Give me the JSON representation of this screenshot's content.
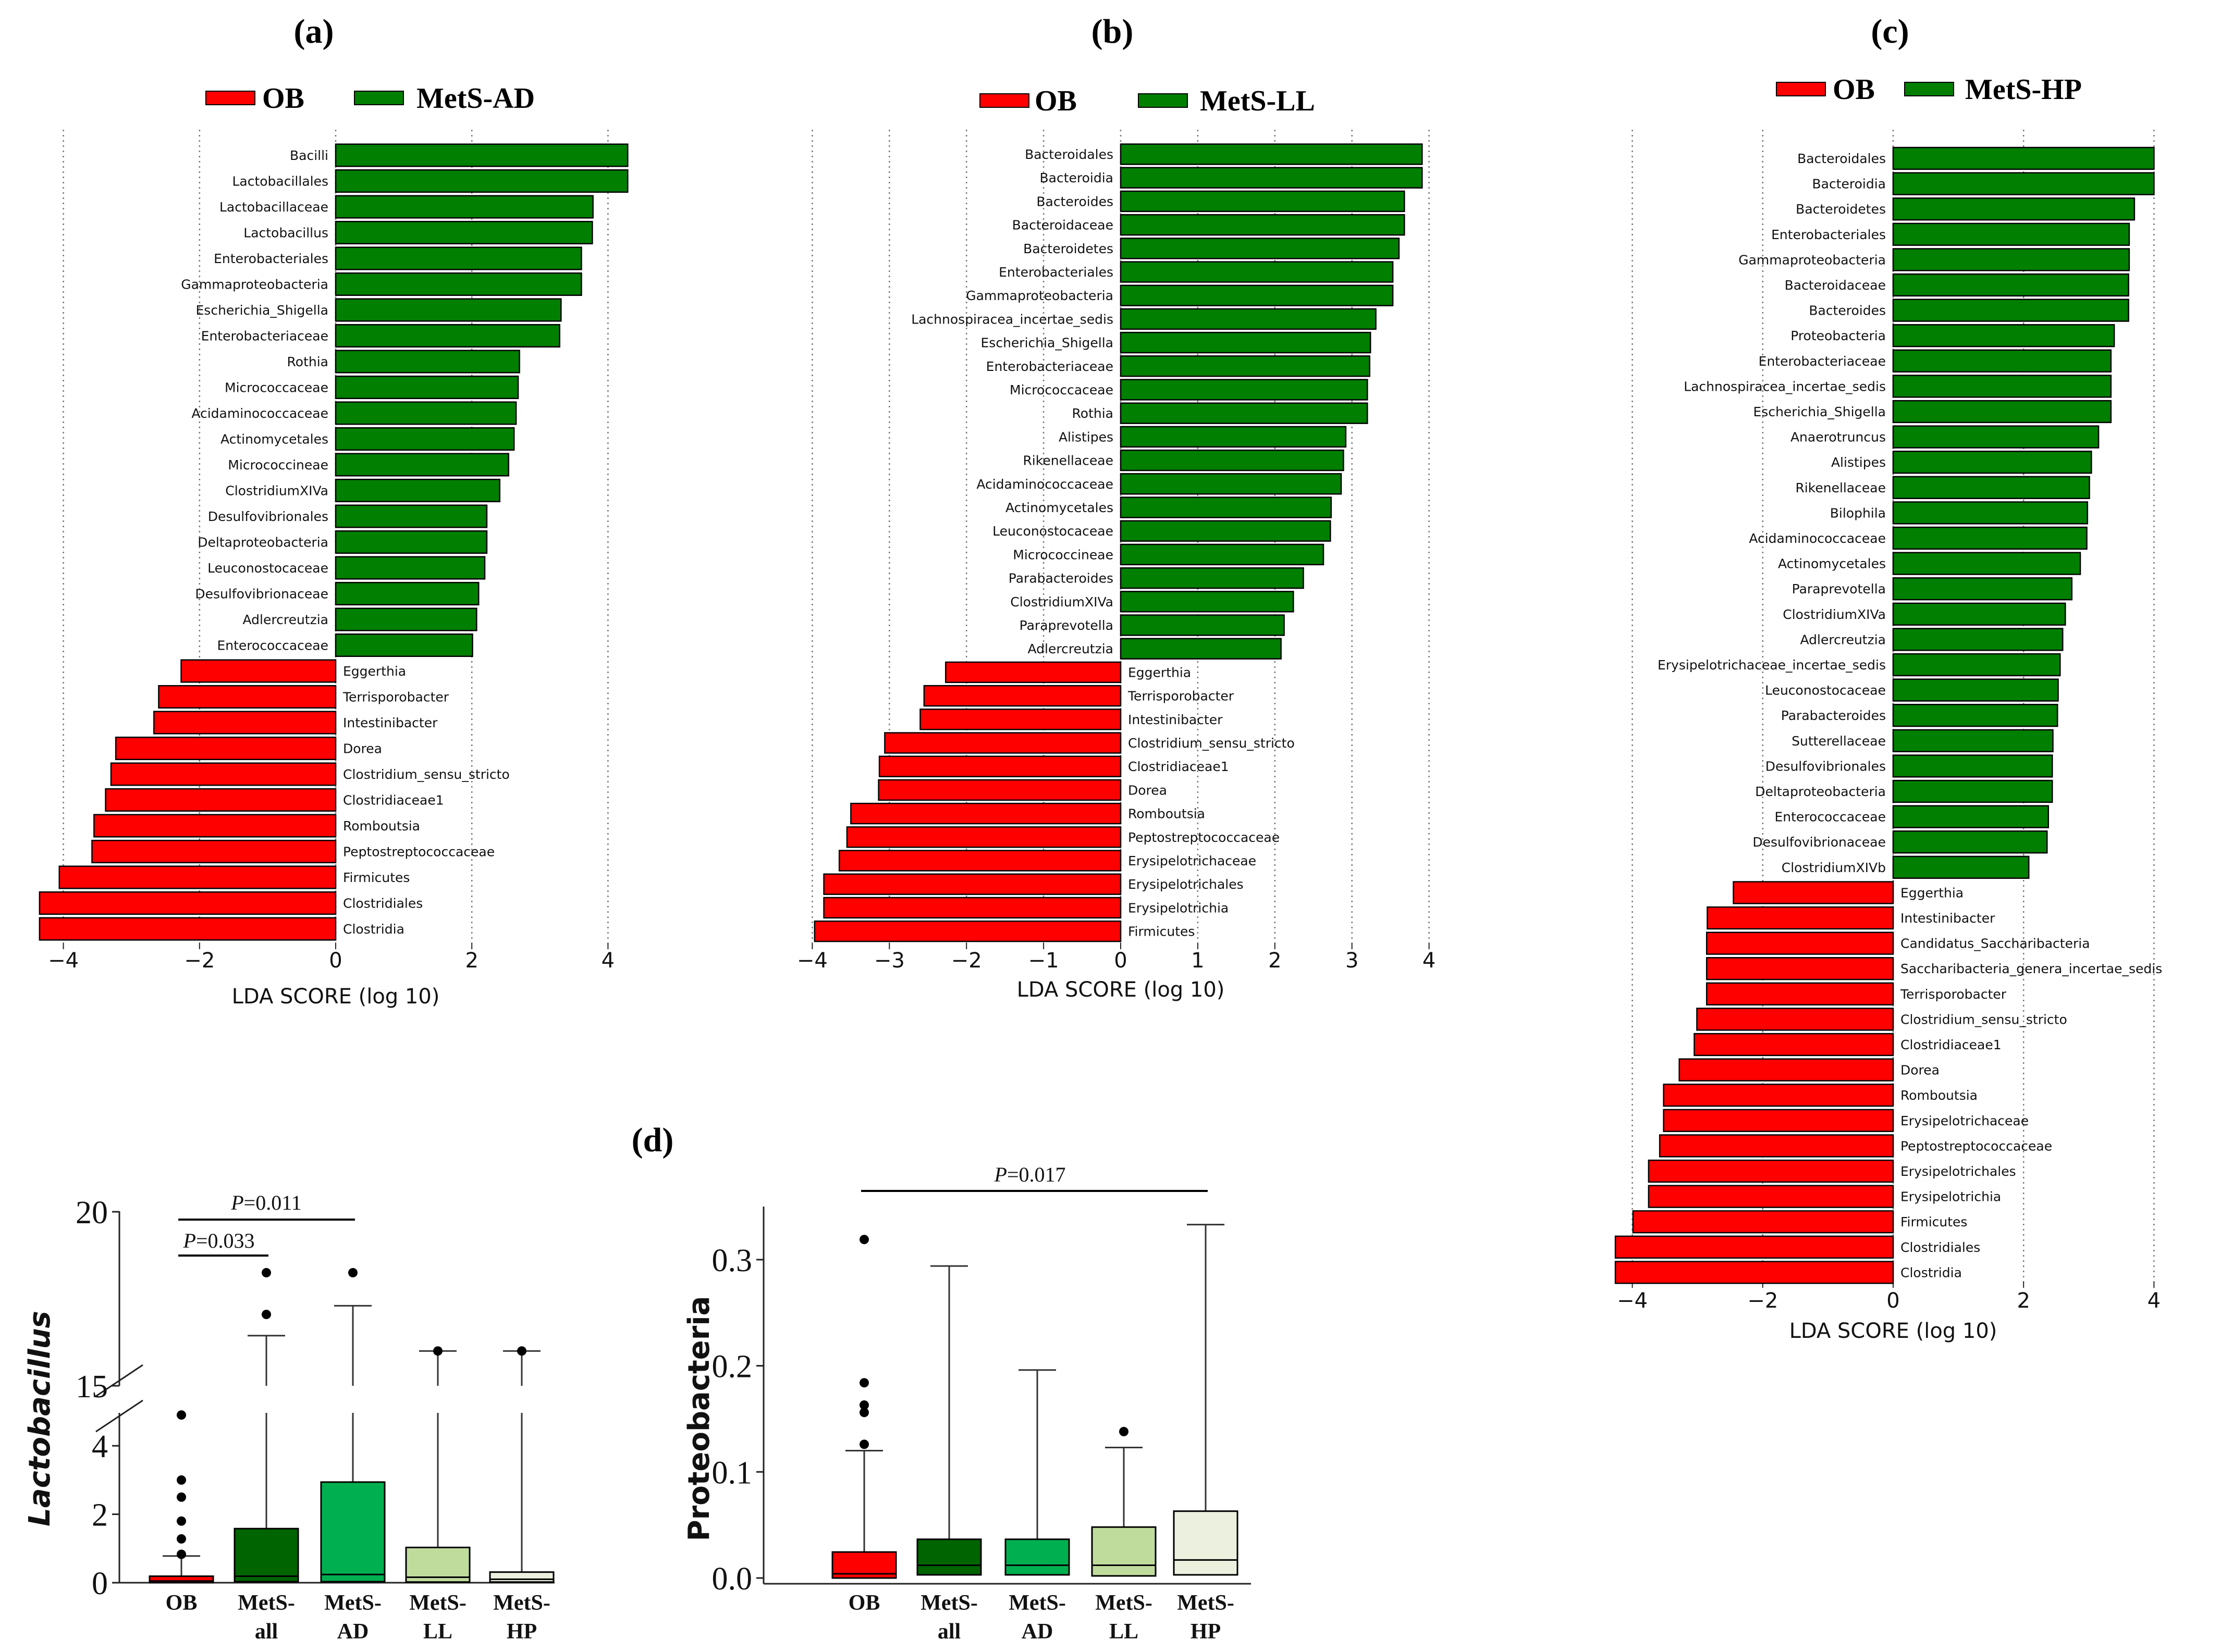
{
  "chart_data": [
    {
      "type": "bar",
      "orientation": "horizontal",
      "title": "(a)",
      "legend": [
        {
          "label": "OB",
          "color": "#ff0000"
        },
        {
          "label": "MetS-AD",
          "color": "#007f00"
        }
      ],
      "legend_placement": "top",
      "xlabel": "LDA SCORE (log 10)",
      "xticks": [
        -4,
        -2,
        0,
        2,
        4
      ],
      "xtick_labels": [
        "−4",
        "−2",
        "0",
        "2",
        "4"
      ],
      "xlim": [
        -4.5,
        4.5
      ],
      "grid": "vertical dotted",
      "categories": [
        "Bacilli",
        "Lactobacillales",
        "Lactobacillaceae",
        "Lactobacillus",
        "Enterobacteriales",
        "Gammaproteobacteria",
        "Escherichia_Shigella",
        "Enterobacteriaceae",
        "Rothia",
        "Micrococcaceae",
        "Acidaminococcaceae",
        "Actinomycetales",
        "Micrococcineae",
        "ClostridiumXIVa",
        "Desulfovibrionales",
        "Deltaproteobacteria",
        "Leuconostocaceae",
        "Desulfovibrionaceae",
        "Adlercreutzia",
        "Enterococcaceae",
        "Eggerthia",
        "Terrisporobacter",
        "Intestinibacter",
        "Dorea",
        "Clostridium_sensu_stricto",
        "Clostridiaceae1",
        "Romboutsia",
        "Peptostreptococcaceae",
        "Firmicutes",
        "Clostridiales",
        "Clostridia"
      ],
      "values": [
        4.29,
        4.29,
        3.78,
        3.77,
        3.61,
        3.61,
        3.31,
        3.29,
        2.7,
        2.68,
        2.65,
        2.62,
        2.54,
        2.41,
        2.22,
        2.22,
        2.19,
        2.1,
        2.07,
        2.01,
        -2.27,
        -2.6,
        -2.67,
        -3.23,
        -3.3,
        -3.38,
        -3.55,
        -3.58,
        -4.06,
        -4.35,
        -4.35
      ]
    },
    {
      "type": "bar",
      "orientation": "horizontal",
      "title": "(b)",
      "legend": [
        {
          "label": "OB",
          "color": "#ff0000"
        },
        {
          "label": "MetS-LL",
          "color": "#007f00"
        }
      ],
      "legend_placement": "top",
      "xlabel": "LDA SCORE (log 10)",
      "xticks": [
        -4,
        -3,
        -2,
        -1,
        0,
        1,
        2,
        3,
        4
      ],
      "xtick_labels": [
        "−4",
        "−3",
        "−2",
        "−1",
        "0",
        "1",
        "2",
        "3",
        "4"
      ],
      "xlim": [
        -4,
        4
      ],
      "grid": "vertical dotted",
      "categories": [
        "Bacteroidales",
        "Bacteroidia",
        "Bacteroides",
        "Bacteroidaceae",
        "Bacteroidetes",
        "Enterobacteriales",
        "Gammaproteobacteria",
        "Lachnospiracea_incertae_sedis",
        "Escherichia_Shigella",
        "Enterobacteriaceae",
        "Micrococcaceae",
        "Rothia",
        "Alistipes",
        "Rikenellaceae",
        "Acidaminococcaceae",
        "Actinomycetales",
        "Leuconostocaceae",
        "Micrococcineae",
        "Parabacteroides",
        "ClostridiumXIVa",
        "Paraprevotella",
        "Adlercreutzia",
        "Eggerthia",
        "Terrisporobacter",
        "Intestinibacter",
        "Clostridium_sensu_stricto",
        "Clostridiaceae1",
        "Dorea",
        "Romboutsia",
        "Peptostreptococcaceae",
        "Erysipelotrichaceae",
        "Erysipelotrichales",
        "Erysipelotrichia",
        "Firmicutes"
      ],
      "values": [
        3.91,
        3.91,
        3.68,
        3.68,
        3.61,
        3.53,
        3.53,
        3.31,
        3.24,
        3.23,
        3.2,
        3.2,
        2.92,
        2.89,
        2.86,
        2.73,
        2.72,
        2.63,
        2.37,
        2.24,
        2.12,
        2.08,
        -2.27,
        -2.55,
        -2.6,
        -3.06,
        -3.13,
        -3.14,
        -3.5,
        -3.55,
        -3.65,
        -3.85,
        -3.85,
        -3.97
      ]
    },
    {
      "type": "bar",
      "orientation": "horizontal",
      "title": "(c)",
      "legend": [
        {
          "label": "OB",
          "color": "#ff0000"
        },
        {
          "label": "MetS-HP",
          "color": "#007f00"
        }
      ],
      "legend_placement": "top",
      "xlabel": "LDA SCORE (log 10)",
      "xticks": [
        -4,
        -2,
        0,
        2,
        4
      ],
      "xtick_labels": [
        "−4",
        "−2",
        "0",
        "2",
        "4"
      ],
      "xlim": [
        -4.3,
        4.3
      ],
      "grid": "vertical dotted",
      "categories": [
        "Bacteroidales",
        "Bacteroidia",
        "Bacteroidetes",
        "Enterobacteriales",
        "Gammaproteobacteria",
        "Bacteroidaceae",
        "Bacteroides",
        "Proteobacteria",
        "Enterobacteriaceae",
        "Lachnospiracea_incertae_sedis",
        "Escherichia_Shigella",
        "Anaerotruncus",
        "Alistipes",
        "Rikenellaceae",
        "Bilophila",
        "Acidaminococcaceae",
        "Actinomycetales",
        "Paraprevotella",
        "ClostridiumXIVa",
        "Adlercreutzia",
        "Erysipelotrichaceae_incertae_sedis",
        "Leuconostocaceae",
        "Parabacteroides",
        "Sutterellaceae",
        "Desulfovibrionales",
        "Deltaproteobacteria",
        "Enterococcaceae",
        "Desulfovibrionaceae",
        "ClostridiumXIVb",
        "Eggerthia",
        "Intestinibacter",
        "Candidatus_Saccharibacteria",
        "Saccharibacteria_genera_incertae_sedis",
        "Terrisporobacter",
        "Clostridium_sensu_stricto",
        "Clostridiaceae1",
        "Dorea",
        "Romboutsia",
        "Erysipelotrichaceae",
        "Peptostreptococcaceae",
        "Erysipelotrichales",
        "Erysipelotrichia",
        "Firmicutes",
        "Clostridiales",
        "Clostridia"
      ],
      "values": [
        4.0,
        4.0,
        3.7,
        3.62,
        3.62,
        3.61,
        3.61,
        3.39,
        3.34,
        3.34,
        3.34,
        3.15,
        3.04,
        3.01,
        2.98,
        2.97,
        2.87,
        2.74,
        2.64,
        2.6,
        2.56,
        2.53,
        2.52,
        2.45,
        2.44,
        2.44,
        2.38,
        2.36,
        2.08,
        -2.45,
        -2.85,
        -2.86,
        -2.86,
        -2.86,
        -3.01,
        -3.05,
        -3.28,
        -3.52,
        -3.52,
        -3.58,
        -3.75,
        -3.75,
        -3.99,
        -4.26,
        -4.26
      ]
    },
    {
      "type": "box",
      "title": "(d)",
      "ylabel": "Lactobacillus",
      "yticks": [
        0,
        2,
        4,
        15,
        20
      ],
      "ytick_labels": [
        "0",
        "2",
        "4",
        "15",
        "20"
      ],
      "axis_break": [
        5,
        15
      ],
      "ylim": [
        0,
        20
      ],
      "categories": [
        {
          "line1": "OB",
          "line2": ""
        },
        {
          "line1": "MetS-",
          "line2": "all"
        },
        {
          "line1": "MetS-",
          "line2": "AD"
        },
        {
          "line1": "MetS-",
          "line2": "LL"
        },
        {
          "line1": "MetS-",
          "line2": "HP"
        }
      ],
      "colors": [
        "#ff0000",
        "#006400",
        "#00b050",
        "#c0dc9c",
        "#ebf1de"
      ],
      "boxes": [
        {
          "q1": 0.0,
          "median": 0.05,
          "q3": 0.19,
          "whisker_low": 0.0,
          "whisker_high": 0.78,
          "outliers": [
            0.83,
            1.28,
            1.8,
            2.5,
            3.0,
            4.9
          ]
        },
        {
          "q1": 0.03,
          "median": 0.19,
          "q3": 1.58,
          "whisker_low": 0.0,
          "whisker_high": 16.44,
          "outliers": [
            17.05,
            18.25
          ]
        },
        {
          "q1": 0.03,
          "median": 0.24,
          "q3": 2.94,
          "whisker_low": 0.0,
          "whisker_high": 17.3,
          "outliers": [
            18.25
          ]
        },
        {
          "q1": 0.02,
          "median": 0.16,
          "q3": 1.03,
          "whisker_low": 0.0,
          "whisker_high": 16.0,
          "outliers": [
            16.0
          ]
        },
        {
          "q1": 0.02,
          "median": 0.1,
          "q3": 0.31,
          "whisker_low": 0.0,
          "whisker_high": 16.0,
          "outliers": [
            16.0
          ]
        }
      ],
      "annotations": [
        {
          "p": "P",
          "value": "=0.011",
          "from": 0,
          "to": 2
        },
        {
          "p": "P",
          "value": "=0.033",
          "from": 0,
          "to": 1
        }
      ]
    },
    {
      "type": "box",
      "ylabel": "Proteobacteria",
      "yticks": [
        0.0,
        0.1,
        0.2,
        0.3
      ],
      "ytick_labels": [
        "0.0",
        "0.1",
        "0.2",
        "0.3"
      ],
      "ylim": [
        0,
        0.35
      ],
      "categories": [
        {
          "line1": "OB",
          "line2": ""
        },
        {
          "line1": "MetS-",
          "line2": "all"
        },
        {
          "line1": "MetS-",
          "line2": "AD"
        },
        {
          "line1": "MetS-",
          "line2": "LL"
        },
        {
          "line1": "MetS-",
          "line2": "HP"
        }
      ],
      "colors": [
        "#ff0000",
        "#006400",
        "#00b050",
        "#c0dc9c",
        "#ebf1de"
      ],
      "boxes": [
        {
          "q1": 0.0,
          "median": 0.004,
          "q3": 0.0245,
          "whisker_low": 0.0,
          "whisker_high": 0.12,
          "outliers": [
            0.126,
            0.156,
            0.163,
            0.184,
            0.319
          ]
        },
        {
          "q1": 0.003,
          "median": 0.012,
          "q3": 0.0365,
          "whisker_low": 0.0,
          "whisker_high": 0.294,
          "outliers": []
        },
        {
          "q1": 0.003,
          "median": 0.012,
          "q3": 0.0365,
          "whisker_low": 0.0,
          "whisker_high": 0.196,
          "outliers": []
        },
        {
          "q1": 0.002,
          "median": 0.012,
          "q3": 0.048,
          "whisker_low": 0.0,
          "whisker_high": 0.123,
          "outliers": [
            0.138
          ]
        },
        {
          "q1": 0.003,
          "median": 0.017,
          "q3": 0.063,
          "whisker_low": 0.0,
          "whisker_high": 0.333,
          "outliers": []
        }
      ],
      "annotations": [
        {
          "p": "P",
          "value": "=0.017",
          "from": 0,
          "to": 4
        }
      ]
    }
  ]
}
